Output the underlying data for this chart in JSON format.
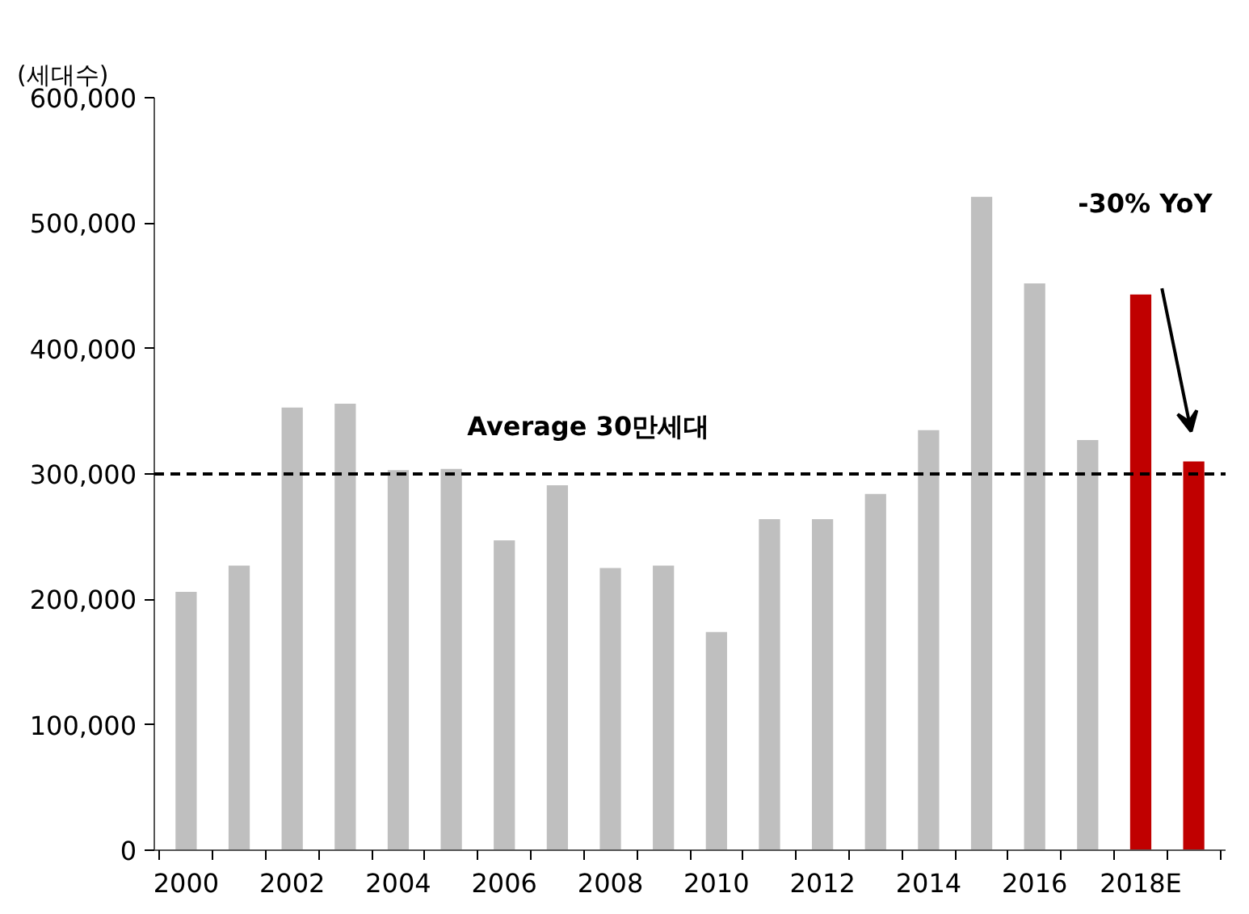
{
  "chart_data": {
    "type": "bar",
    "ylabel": "(세대수)",
    "categories": [
      "2000",
      null,
      "2002",
      null,
      "2004",
      null,
      "2006",
      null,
      "2008",
      null,
      "2010",
      null,
      "2012",
      null,
      "2014",
      null,
      "2016",
      null,
      "2018E",
      null
    ],
    "values": [
      206000,
      227000,
      353000,
      356000,
      303000,
      304000,
      247000,
      291000,
      225000,
      227000,
      174000,
      264000,
      264000,
      284000,
      335000,
      521000,
      452000,
      327000,
      443000,
      310000
    ],
    "colors": [
      "#bfbfbf",
      "#bfbfbf",
      "#bfbfbf",
      "#bfbfbf",
      "#bfbfbf",
      "#bfbfbf",
      "#bfbfbf",
      "#bfbfbf",
      "#bfbfbf",
      "#bfbfbf",
      "#bfbfbf",
      "#bfbfbf",
      "#bfbfbf",
      "#bfbfbf",
      "#bfbfbf",
      "#bfbfbf",
      "#bfbfbf",
      "#bfbfbf",
      "#c00000",
      "#c00000"
    ],
    "ylim": [
      0,
      600000
    ],
    "yticks": [
      {
        "value": 0,
        "label": "0"
      },
      {
        "value": 100000,
        "label": "100,000"
      },
      {
        "value": 200000,
        "label": "200,000"
      },
      {
        "value": 300000,
        "label": "300,000"
      },
      {
        "value": 400000,
        "label": "400,000"
      },
      {
        "value": 500000,
        "label": "500,000"
      },
      {
        "value": 600000,
        "label": "600,000"
      }
    ],
    "ref_lines": [
      {
        "axis": "y",
        "value": 300000,
        "label": "Average 30만세대",
        "color": "#000000",
        "line_style": "dashed"
      }
    ],
    "annotations": [
      "-30% YoY"
    ],
    "grid": false
  }
}
